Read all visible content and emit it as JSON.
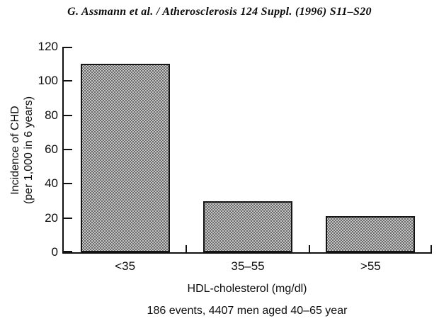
{
  "header": {
    "citation": "G. Assmann et al. / Atherosclerosis 124 Suppl. (1996) S11–S20"
  },
  "chart_data": {
    "type": "bar",
    "title": "",
    "categories": [
      "<35",
      "35–55",
      ">55"
    ],
    "values": [
      110,
      30,
      21
    ],
    "xlabel": "HDL-cholesterol (mg/dl)",
    "ylabel_lines": [
      "Incidence of CHD",
      "(per 1,000 in 6 years)"
    ],
    "ylim": [
      0,
      120
    ],
    "yticks": [
      0,
      20,
      40,
      60,
      80,
      100,
      120
    ],
    "caption": "186 events, 4407 men aged 40–65 year",
    "grid": false,
    "legend": "none",
    "tick_style": "inside",
    "colors": {
      "bar_fill": "#c6c6c6",
      "bar_dot": "#4d4d4d",
      "bar_border": "#151515",
      "axis": "#111111",
      "text": "#0d0d0d",
      "background": "#ffffff"
    }
  }
}
